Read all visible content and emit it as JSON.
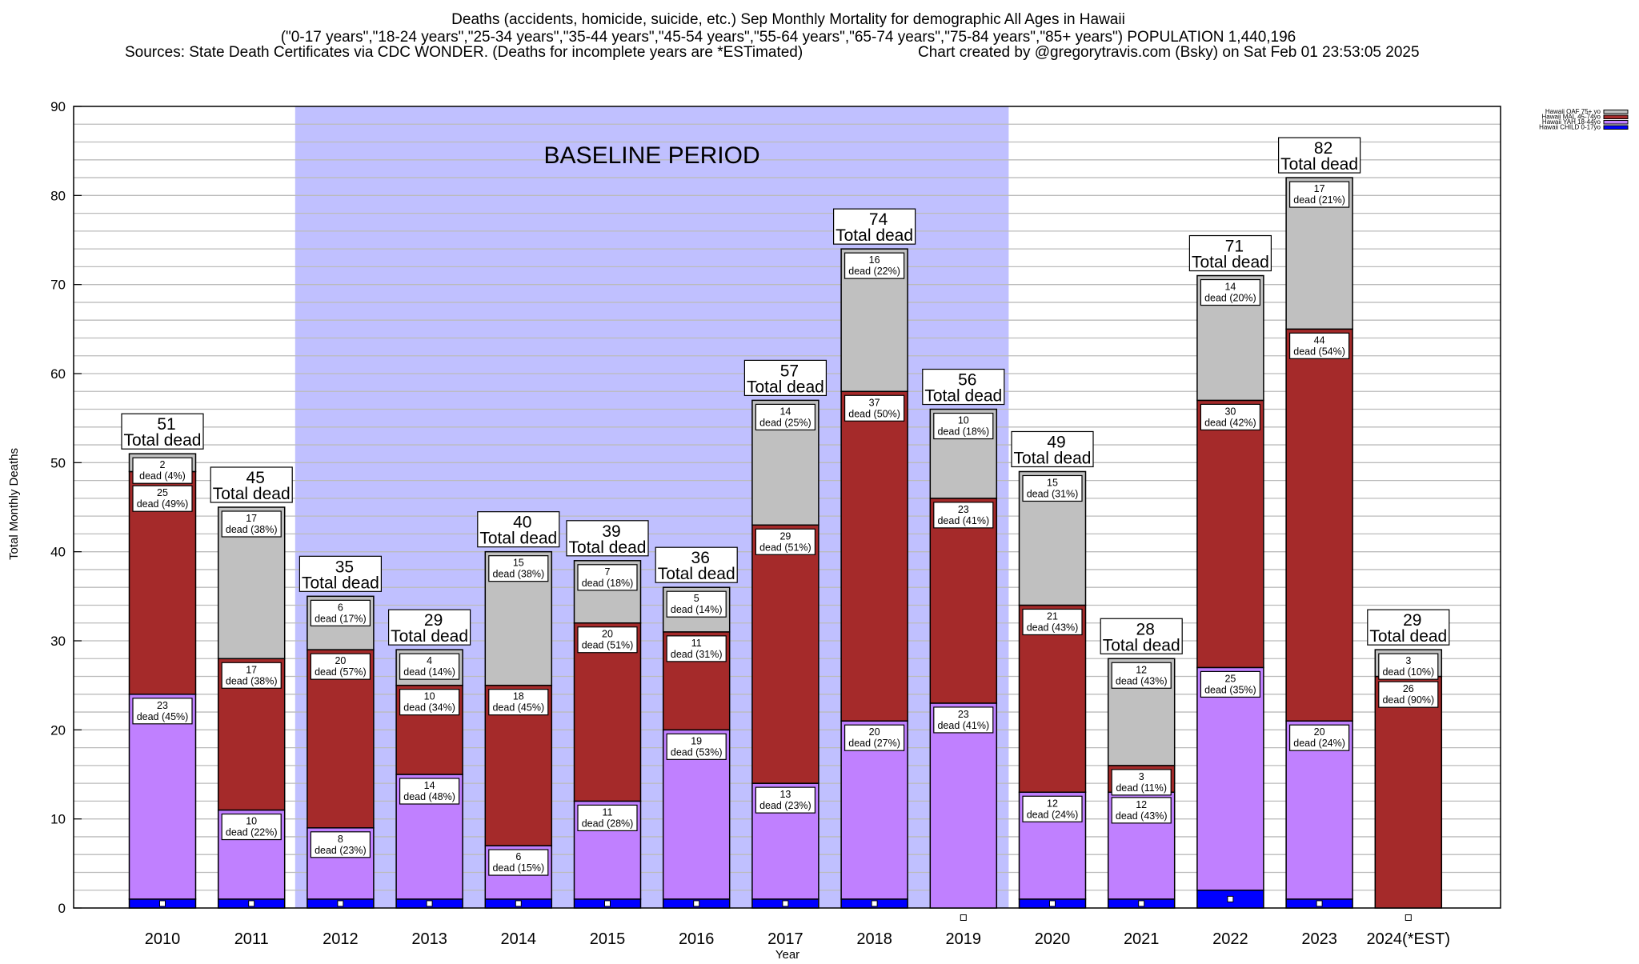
{
  "chart_data": {
    "type": "bar",
    "stacked": true,
    "title_lines": [
      "Deaths (accidents, homicide, suicide, etc.) Sep Monthly Mortality for demographic All Ages in Hawaii",
      "(\"0-17 years\",\"18-24 years\",\"25-34 years\",\"35-44 years\",\"45-54 years\",\"55-64 years\",\"65-74 years\",\"75-84 years\",\"85+ years\") POPULATION 1,440,196"
    ],
    "sources": "Sources: State Death Certificates via CDC WONDER. (Deaths for incomplete years are *ESTimated)",
    "credit": "Chart created by @gregorytravis.com (Bsky) on Sat Feb 01 23:53:05 2025",
    "xlabel": "Year",
    "ylabel": "Total Monthly Deaths",
    "ylim": [
      0,
      90
    ],
    "yticks": [
      0,
      10,
      20,
      30,
      40,
      50,
      60,
      70,
      80,
      90
    ],
    "grid": true,
    "legend_position": "top-right (outside)",
    "baseline_label": "BASELINE PERIOD",
    "baseline_range": [
      "2012",
      "2019"
    ],
    "total_label": "Total dead",
    "segment_label_word": "dead",
    "categories": [
      "2010",
      "2011",
      "2012",
      "2013",
      "2014",
      "2015",
      "2016",
      "2017",
      "2018",
      "2019",
      "2020",
      "2021",
      "2022",
      "2023",
      "2024(*EST)"
    ],
    "series": [
      {
        "name": "Hawaii CHILD 0-17yo",
        "color": "#0000ff",
        "values": [
          1,
          1,
          1,
          1,
          1,
          1,
          1,
          1,
          1,
          0,
          1,
          1,
          2,
          1,
          0
        ],
        "percents": [
          null,
          null,
          null,
          null,
          null,
          null,
          null,
          null,
          null,
          null,
          null,
          null,
          null,
          null,
          null
        ]
      },
      {
        "name": "Hawaii YAH 18-44yo",
        "color": "#c080ff",
        "values": [
          23,
          10,
          8,
          14,
          6,
          11,
          19,
          13,
          20,
          23,
          12,
          12,
          25,
          20,
          0
        ],
        "percents": [
          45,
          22,
          23,
          48,
          15,
          28,
          53,
          23,
          27,
          41,
          24,
          43,
          35,
          24,
          null
        ]
      },
      {
        "name": "Hawaii MAL 45-74yo",
        "color": "#a52a2a",
        "values": [
          25,
          17,
          20,
          10,
          18,
          20,
          11,
          29,
          37,
          23,
          21,
          3,
          30,
          44,
          26
        ],
        "percents": [
          49,
          38,
          57,
          34,
          45,
          51,
          31,
          51,
          50,
          41,
          43,
          11,
          42,
          54,
          90
        ]
      },
      {
        "name": "Hawaii OAF 75+ yo",
        "color": "#c0c0c0",
        "values": [
          2,
          17,
          6,
          4,
          15,
          7,
          5,
          14,
          16,
          10,
          15,
          12,
          14,
          17,
          3
        ],
        "percents": [
          4,
          38,
          17,
          14,
          38,
          18,
          14,
          25,
          22,
          18,
          31,
          43,
          20,
          21,
          10
        ]
      }
    ],
    "totals": [
      51,
      45,
      35,
      29,
      40,
      39,
      36,
      57,
      74,
      56,
      49,
      28,
      71,
      82,
      29
    ],
    "baseline_color": "#c0c0ff"
  }
}
